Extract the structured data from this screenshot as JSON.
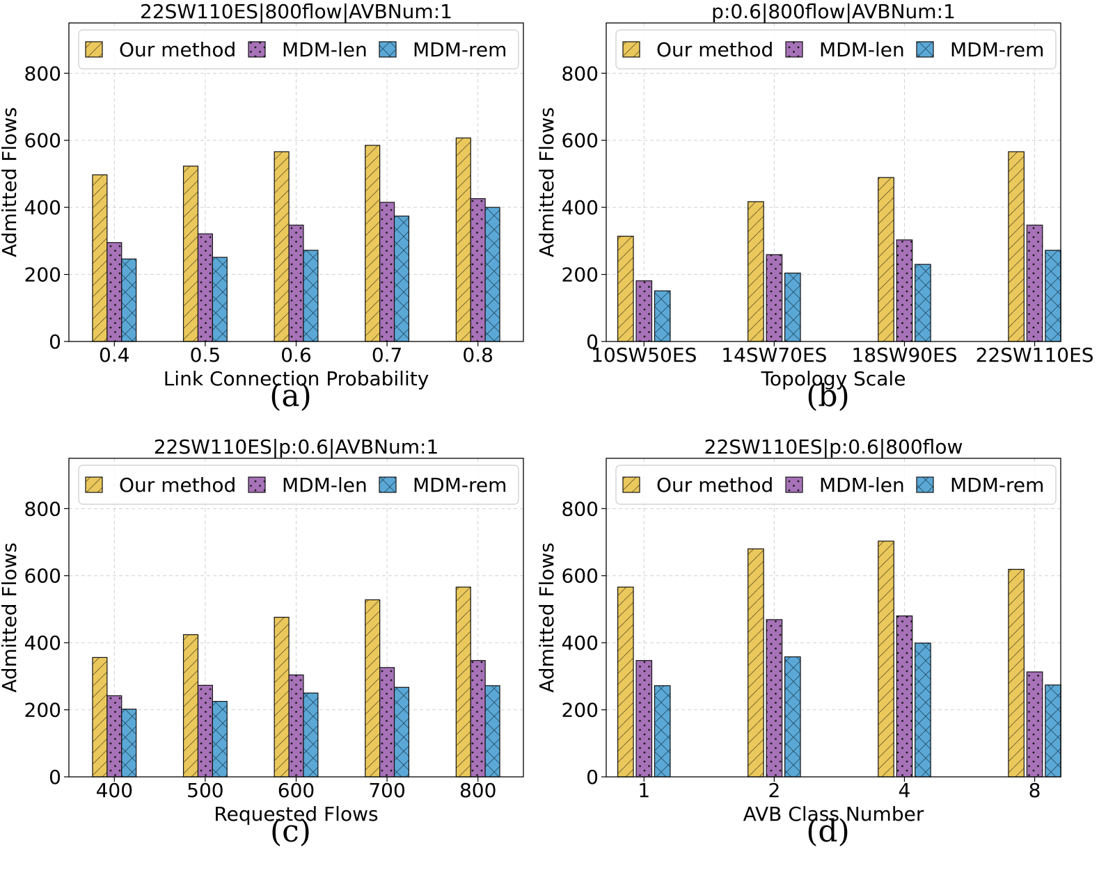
{
  "legend": {
    "entries": [
      "Our method",
      "MDM-len",
      "MDM-rem"
    ]
  },
  "colors": {
    "our_method": "#eac85c",
    "mdm_len": "#a772b8",
    "mdm_rem": "#5ba8d6",
    "grid": "#d0d0d0"
  },
  "chart_data": [
    {
      "type": "bar",
      "panel_label": "(a)",
      "title": "22SW110ES|800flow|AVBNum:1",
      "xlabel": "Link Connection Probability",
      "ylabel": "Admitted Flows",
      "categories": [
        "0.4",
        "0.5",
        "0.6",
        "0.7",
        "0.8"
      ],
      "ylim": [
        0,
        950
      ],
      "yticks": [
        0,
        200,
        400,
        600,
        800
      ],
      "grid": true,
      "legend_position": "top",
      "series": [
        {
          "name": "Our method",
          "values": [
            497,
            523,
            566,
            585,
            607
          ]
        },
        {
          "name": "MDM-len",
          "values": [
            295,
            321,
            347,
            415,
            426
          ]
        },
        {
          "name": "MDM-rem",
          "values": [
            246,
            251,
            272,
            374,
            400
          ]
        }
      ]
    },
    {
      "type": "bar",
      "panel_label": "(b)",
      "title": "p:0.6|800flow|AVBNum:1",
      "xlabel": "Topology Scale",
      "ylabel": "Admitted Flows",
      "categories": [
        "10SW50ES",
        "14SW70ES",
        "18SW90ES",
        "22SW110ES"
      ],
      "ylim": [
        0,
        950
      ],
      "yticks": [
        0,
        200,
        400,
        600,
        800
      ],
      "grid": true,
      "legend_position": "top",
      "series": [
        {
          "name": "Our method",
          "values": [
            314,
            417,
            489,
            566
          ]
        },
        {
          "name": "MDM-len",
          "values": [
            181,
            259,
            303,
            347
          ]
        },
        {
          "name": "MDM-rem",
          "values": [
            151,
            204,
            230,
            272
          ]
        }
      ]
    },
    {
      "type": "bar",
      "panel_label": "(c)",
      "title": "22SW110ES|p:0.6|AVBNum:1",
      "xlabel": "Requested Flows",
      "ylabel": "Admitted Flows",
      "categories": [
        "400",
        "500",
        "600",
        "700",
        "800"
      ],
      "ylim": [
        0,
        950
      ],
      "yticks": [
        0,
        200,
        400,
        600,
        800
      ],
      "grid": true,
      "legend_position": "top",
      "series": [
        {
          "name": "Our method",
          "values": [
            356,
            424,
            476,
            528,
            566
          ]
        },
        {
          "name": "MDM-len",
          "values": [
            242,
            273,
            304,
            326,
            347
          ]
        },
        {
          "name": "MDM-rem",
          "values": [
            202,
            225,
            250,
            267,
            272
          ]
        }
      ]
    },
    {
      "type": "bar",
      "panel_label": "(d)",
      "title": "22SW110ES|p:0.6|800flow",
      "xlabel": "AVB Class Number",
      "ylabel": "Admitted Flows",
      "categories": [
        "1",
        "2",
        "4",
        "8"
      ],
      "ylim": [
        0,
        950
      ],
      "yticks": [
        0,
        200,
        400,
        600,
        800
      ],
      "grid": true,
      "legend_position": "top",
      "series": [
        {
          "name": "Our method",
          "values": [
            566,
            680,
            703,
            619
          ]
        },
        {
          "name": "MDM-len",
          "values": [
            347,
            469,
            480,
            313
          ]
        },
        {
          "name": "MDM-rem",
          "values": [
            272,
            358,
            399,
            274
          ]
        }
      ]
    }
  ]
}
